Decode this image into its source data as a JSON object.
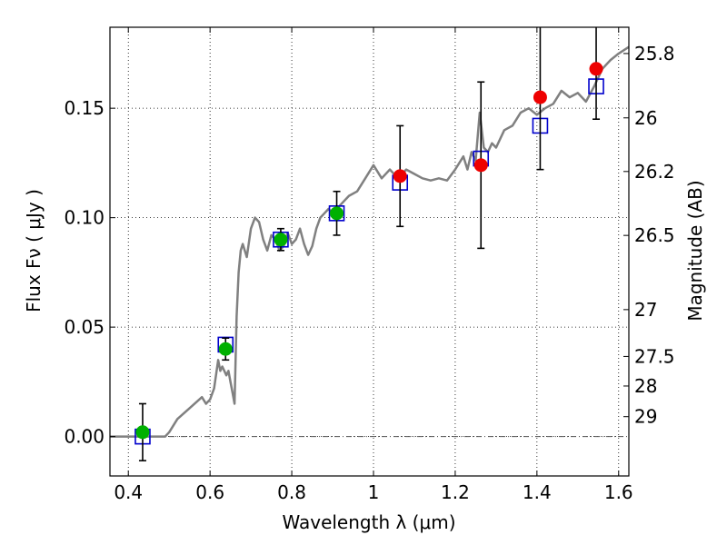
{
  "chart_data": {
    "type": "scatter",
    "xlabel": "Wavelength  λ (μm)",
    "ylabel": "Flux  Fν  ( μJy )",
    "y2label": "Magnitude (AB)",
    "xlim": [
      0.355,
      1.625
    ],
    "ylim": [
      -0.018,
      0.187
    ],
    "grid": true,
    "x_ticks": [
      0.4,
      0.6,
      0.8,
      1.0,
      1.2,
      1.4,
      1.6
    ],
    "x_tick_labels": [
      "0.4",
      "0.6",
      "0.8",
      "1",
      "1.2",
      "1.4",
      "1.6"
    ],
    "y_ticks": [
      0.0,
      0.05,
      0.1,
      0.15
    ],
    "y_tick_labels": [
      "0.00",
      "0.05",
      "0.10",
      "0.15"
    ],
    "mag_ticks": [
      {
        "flux": 0.175,
        "label": "25.8"
      },
      {
        "flux": 0.1456,
        "label": "26"
      },
      {
        "flux": 0.1211,
        "label": "26.2"
      },
      {
        "flux": 0.0919,
        "label": "26.5"
      },
      {
        "flux": 0.058,
        "label": "27"
      },
      {
        "flux": 0.0366,
        "label": "27.5"
      },
      {
        "flux": 0.0231,
        "label": "28"
      },
      {
        "flux": 0.0091,
        "label": "29"
      }
    ],
    "series": [
      {
        "color": "#808080",
        "x": [
          0.355,
          0.4,
          0.45,
          0.49,
          0.5,
          0.52,
          0.55,
          0.58,
          0.59,
          0.6,
          0.61,
          0.62,
          0.625,
          0.63,
          0.64,
          0.645,
          0.65,
          0.655,
          0.66,
          0.665,
          0.67,
          0.675,
          0.68,
          0.69,
          0.7,
          0.71,
          0.72,
          0.73,
          0.74,
          0.75,
          0.76,
          0.77,
          0.78,
          0.79,
          0.8,
          0.81,
          0.82,
          0.83,
          0.84,
          0.85,
          0.86,
          0.87,
          0.88,
          0.89,
          0.9,
          0.92,
          0.94,
          0.96,
          0.98,
          1.0,
          1.02,
          1.04,
          1.06,
          1.08,
          1.1,
          1.12,
          1.14,
          1.16,
          1.18,
          1.2,
          1.22,
          1.23,
          1.24,
          1.25,
          1.26,
          1.27,
          1.28,
          1.29,
          1.3,
          1.32,
          1.34,
          1.36,
          1.38,
          1.4,
          1.42,
          1.44,
          1.46,
          1.48,
          1.5,
          1.52,
          1.54,
          1.56,
          1.58,
          1.6,
          1.625
        ],
        "y": [
          0.0,
          0.0,
          0.0,
          0.0,
          0.002,
          0.008,
          0.013,
          0.018,
          0.015,
          0.017,
          0.022,
          0.035,
          0.03,
          0.032,
          0.028,
          0.03,
          0.025,
          0.02,
          0.015,
          0.055,
          0.075,
          0.085,
          0.088,
          0.082,
          0.095,
          0.1,
          0.098,
          0.09,
          0.085,
          0.092,
          0.09,
          0.085,
          0.087,
          0.093,
          0.088,
          0.09,
          0.095,
          0.088,
          0.083,
          0.087,
          0.095,
          0.1,
          0.102,
          0.104,
          0.102,
          0.106,
          0.11,
          0.112,
          0.118,
          0.124,
          0.118,
          0.122,
          0.118,
          0.122,
          0.12,
          0.118,
          0.117,
          0.118,
          0.117,
          0.122,
          0.128,
          0.122,
          0.13,
          0.126,
          0.148,
          0.132,
          0.13,
          0.134,
          0.132,
          0.14,
          0.142,
          0.148,
          0.15,
          0.147,
          0.15,
          0.152,
          0.158,
          0.155,
          0.157,
          0.153,
          0.16,
          0.168,
          0.172,
          0.175,
          0.178
        ]
      },
      {
        "marker": "open-square",
        "color": "#0000cc",
        "x": [
          0.435,
          0.638,
          0.773,
          0.91,
          1.065,
          1.263,
          1.408,
          1.545
        ],
        "y": [
          0.0,
          0.042,
          0.09,
          0.102,
          0.116,
          0.127,
          0.142,
          0.16
        ]
      },
      {
        "marker": "circle",
        "color": "#00b000",
        "x": [
          0.435,
          0.638,
          0.773,
          0.91
        ],
        "y": [
          0.002,
          0.04,
          0.09,
          0.102
        ],
        "err": [
          0.013,
          0.005,
          0.005,
          0.01
        ]
      },
      {
        "marker": "circle",
        "color": "#ee0000",
        "x": [
          1.065,
          1.263,
          1.408,
          1.545
        ],
        "y": [
          0.119,
          0.124,
          0.155,
          0.168
        ],
        "err": [
          0.023,
          0.038,
          0.033,
          0.023
        ]
      }
    ]
  }
}
